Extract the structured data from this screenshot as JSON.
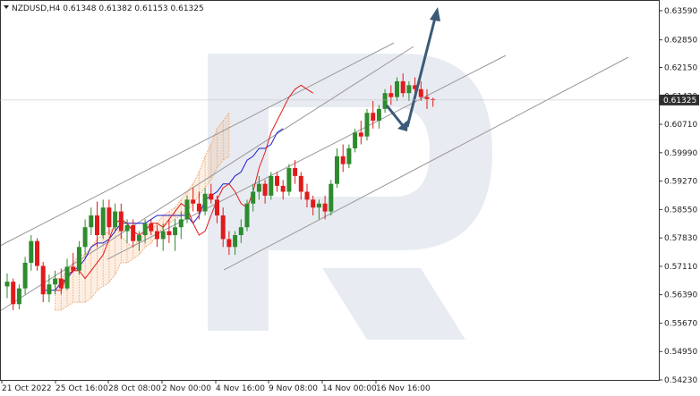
{
  "chart_data": {
    "type": "candlestick",
    "title": "NZDUSD,H4  0.61348 0.61382 0.61153 0.61325",
    "symbol_timeframe": "NZDUSD,H4",
    "ohlc_header": [
      "0.61348",
      "0.61382",
      "0.61153",
      "0.61325"
    ],
    "current_price_label": "0.61325",
    "current_price": 0.61325,
    "ylim": [
      0.5423,
      0.6377
    ],
    "y_ticks": [
      "0.63590",
      "0.62850",
      "0.62150",
      "0.61420",
      "0.60710",
      "0.59990",
      "0.59270",
      "0.58550",
      "0.57830",
      "0.57110",
      "0.56390",
      "0.55670",
      "0.54950",
      "0.54230"
    ],
    "x_ticks": [
      "21 Oct 2022",
      "25 Oct 16:00",
      "28 Oct 08:00",
      "2 Nov 00:00",
      "4 Nov 16:00",
      "9 Nov 08:00",
      "14 Nov 00:00",
      "16 Nov 16:00"
    ],
    "grid": false,
    "colors": {
      "bull": "#2e8b2e",
      "bear": "#e01b1b",
      "tenkan": "#e01b1b",
      "kijun": "#1a1acc",
      "cloud": "#f0a060",
      "trendline": "#999999",
      "forecast_arrow": "#3c5a78",
      "watermark": "#e8ecf2",
      "price_box": "#2f2f2f"
    },
    "candles_ohlc": [
      [
        0.566,
        0.5693,
        0.563,
        0.5672
      ],
      [
        0.5672,
        0.568,
        0.56,
        0.5615
      ],
      [
        0.5615,
        0.5665,
        0.5602,
        0.5655
      ],
      [
        0.5655,
        0.5735,
        0.564,
        0.572
      ],
      [
        0.572,
        0.579,
        0.57,
        0.5775
      ],
      [
        0.5775,
        0.5782,
        0.57,
        0.5712
      ],
      [
        0.5712,
        0.5722,
        0.562,
        0.564
      ],
      [
        0.564,
        0.569,
        0.562,
        0.5665
      ],
      [
        0.5665,
        0.57,
        0.564,
        0.568
      ],
      [
        0.568,
        0.5705,
        0.564,
        0.5655
      ],
      [
        0.5655,
        0.573,
        0.565,
        0.571
      ],
      [
        0.571,
        0.5745,
        0.5695,
        0.57
      ],
      [
        0.57,
        0.5775,
        0.569,
        0.576
      ],
      [
        0.576,
        0.583,
        0.574,
        0.581
      ],
      [
        0.581,
        0.586,
        0.579,
        0.584
      ],
      [
        0.584,
        0.5875,
        0.576,
        0.579
      ],
      [
        0.579,
        0.588,
        0.578,
        0.586
      ],
      [
        0.586,
        0.588,
        0.579,
        0.581
      ],
      [
        0.581,
        0.587,
        0.58,
        0.585
      ],
      [
        0.585,
        0.587,
        0.578,
        0.58
      ],
      [
        0.58,
        0.583,
        0.577,
        0.5815
      ],
      [
        0.5815,
        0.583,
        0.576,
        0.5775
      ],
      [
        0.5775,
        0.58,
        0.575,
        0.579
      ],
      [
        0.579,
        0.583,
        0.577,
        0.582
      ],
      [
        0.582,
        0.583,
        0.579,
        0.58
      ],
      [
        0.58,
        0.5815,
        0.576,
        0.578
      ],
      [
        0.578,
        0.582,
        0.575,
        0.58
      ],
      [
        0.58,
        0.583,
        0.577,
        0.579
      ],
      [
        0.579,
        0.583,
        0.575,
        0.581
      ],
      [
        0.581,
        0.585,
        0.578,
        0.583
      ],
      [
        0.583,
        0.589,
        0.582,
        0.588
      ],
      [
        0.588,
        0.591,
        0.585,
        0.587
      ],
      [
        0.587,
        0.59,
        0.583,
        0.585
      ],
      [
        0.585,
        0.591,
        0.584,
        0.5895
      ],
      [
        0.5895,
        0.592,
        0.587,
        0.588
      ],
      [
        0.588,
        0.589,
        0.582,
        0.584
      ],
      [
        0.584,
        0.586,
        0.576,
        0.578
      ],
      [
        0.578,
        0.58,
        0.574,
        0.576
      ],
      [
        0.576,
        0.58,
        0.574,
        0.579
      ],
      [
        0.579,
        0.583,
        0.577,
        0.581
      ],
      [
        0.581,
        0.588,
        0.58,
        0.587
      ],
      [
        0.587,
        0.592,
        0.585,
        0.59
      ],
      [
        0.59,
        0.594,
        0.588,
        0.592
      ],
      [
        0.592,
        0.593,
        0.587,
        0.589
      ],
      [
        0.589,
        0.595,
        0.588,
        0.594
      ],
      [
        0.594,
        0.595,
        0.59,
        0.5915
      ],
      [
        0.5915,
        0.593,
        0.588,
        0.59
      ],
      [
        0.59,
        0.597,
        0.589,
        0.596
      ],
      [
        0.596,
        0.598,
        0.592,
        0.594
      ],
      [
        0.594,
        0.595,
        0.588,
        0.59
      ],
      [
        0.59,
        0.592,
        0.586,
        0.588
      ],
      [
        0.588,
        0.589,
        0.584,
        0.586
      ],
      [
        0.586,
        0.588,
        0.583,
        0.587
      ],
      [
        0.587,
        0.589,
        0.583,
        0.585
      ],
      [
        0.585,
        0.593,
        0.584,
        0.592
      ],
      [
        0.592,
        0.601,
        0.591,
        0.599
      ],
      [
        0.599,
        0.602,
        0.595,
        0.597
      ],
      [
        0.597,
        0.602,
        0.596,
        0.601
      ],
      [
        0.601,
        0.606,
        0.6,
        0.605
      ],
      [
        0.605,
        0.608,
        0.602,
        0.604
      ],
      [
        0.604,
        0.611,
        0.603,
        0.61
      ],
      [
        0.61,
        0.613,
        0.606,
        0.608
      ],
      [
        0.608,
        0.612,
        0.606,
        0.611
      ],
      [
        0.611,
        0.616,
        0.61,
        0.615
      ],
      [
        0.615,
        0.617,
        0.612,
        0.614
      ],
      [
        0.614,
        0.619,
        0.613,
        0.618
      ],
      [
        0.618,
        0.62,
        0.614,
        0.615
      ],
      [
        0.615,
        0.618,
        0.613,
        0.617
      ],
      [
        0.617,
        0.619,
        0.615,
        0.616
      ],
      [
        0.616,
        0.618,
        0.613,
        0.614
      ],
      [
        0.614,
        0.616,
        0.611,
        0.6135
      ],
      [
        0.61348,
        0.61382,
        0.61153,
        0.61325
      ]
    ],
    "tenkan_sen": [
      0.565,
      0.565,
      0.569,
      0.57,
      0.57,
      0.568,
      0.57,
      0.572,
      0.574,
      0.578,
      0.582,
      0.583,
      0.582,
      0.58,
      0.579,
      0.58,
      0.582,
      0.582,
      0.581,
      0.583,
      0.585,
      0.587,
      0.586,
      0.582,
      0.579,
      0.58,
      0.584,
      0.588,
      0.591,
      0.592,
      0.59,
      0.587,
      0.586,
      0.59,
      0.596,
      0.6,
      0.605,
      0.608,
      0.611,
      0.614,
      0.616,
      0.617,
      0.616,
      0.615
    ],
    "kijun_sen": [
      0.565,
      0.565,
      0.565,
      0.567,
      0.568,
      0.57,
      0.571,
      0.573,
      0.576,
      0.577,
      0.577,
      0.578,
      0.58,
      0.582,
      0.582,
      0.582,
      0.582,
      0.582,
      0.583,
      0.584,
      0.584,
      0.584,
      0.584,
      0.584,
      0.584,
      0.582,
      0.584,
      0.588,
      0.589,
      0.59,
      0.592,
      0.592,
      0.594,
      0.595,
      0.598,
      0.599,
      0.601,
      0.601,
      0.602,
      0.605,
      0.606
    ],
    "cloud_upper": [
      0.568,
      0.568,
      0.57,
      0.572,
      0.574,
      0.574,
      0.576,
      0.578,
      0.579,
      0.58,
      0.581,
      0.579,
      0.577,
      0.576,
      0.578,
      0.579,
      0.58,
      0.582,
      0.584,
      0.585,
      0.586,
      0.588,
      0.59,
      0.592,
      0.595,
      0.599,
      0.602,
      0.606,
      0.608,
      0.61
    ],
    "cloud_lower": [
      0.56,
      0.56,
      0.561,
      0.562,
      0.562,
      0.562,
      0.563,
      0.565,
      0.566,
      0.567,
      0.569,
      0.572,
      0.572,
      0.573,
      0.574,
      0.576,
      0.577,
      0.579,
      0.581,
      0.582,
      0.583,
      0.584,
      0.585,
      0.587,
      0.589,
      0.591,
      0.593,
      0.596,
      0.598,
      0.599
    ]
  }
}
